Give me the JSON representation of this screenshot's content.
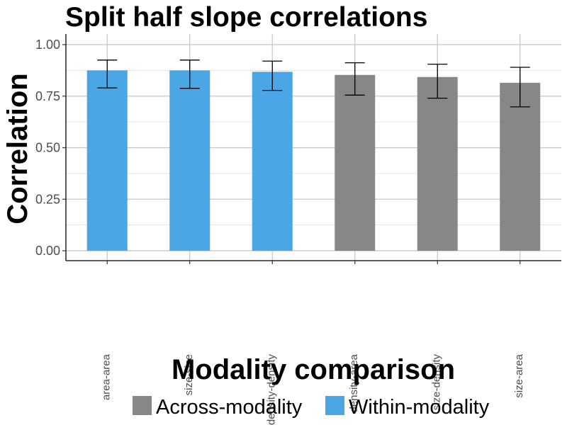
{
  "chart_data": {
    "type": "bar",
    "title": "Split half slope correlations",
    "xlabel": "Modality comparison",
    "ylabel": "Correlation",
    "ylim": [
      0,
      1.05
    ],
    "yticks": [
      "0.00",
      "0.25",
      "0.50",
      "0.75",
      "1.00"
    ],
    "categories": [
      "area-area",
      "size-size",
      "density-density",
      "density-area",
      "size-density",
      "size-area"
    ],
    "values": [
      0.875,
      0.875,
      0.868,
      0.853,
      0.843,
      0.815
    ],
    "error_low": [
      0.79,
      0.788,
      0.778,
      0.755,
      0.74,
      0.698
    ],
    "error_high": [
      0.925,
      0.925,
      0.92,
      0.912,
      0.905,
      0.89
    ],
    "groups": [
      "Within-modality",
      "Within-modality",
      "Within-modality",
      "Across-modality",
      "Across-modality",
      "Across-modality"
    ],
    "legend": [
      {
        "label": "Across-modality",
        "color": "#878787"
      },
      {
        "label": "Within-modality",
        "color": "#4aa6e4"
      }
    ],
    "legend_position": "bottom",
    "grid": true
  }
}
